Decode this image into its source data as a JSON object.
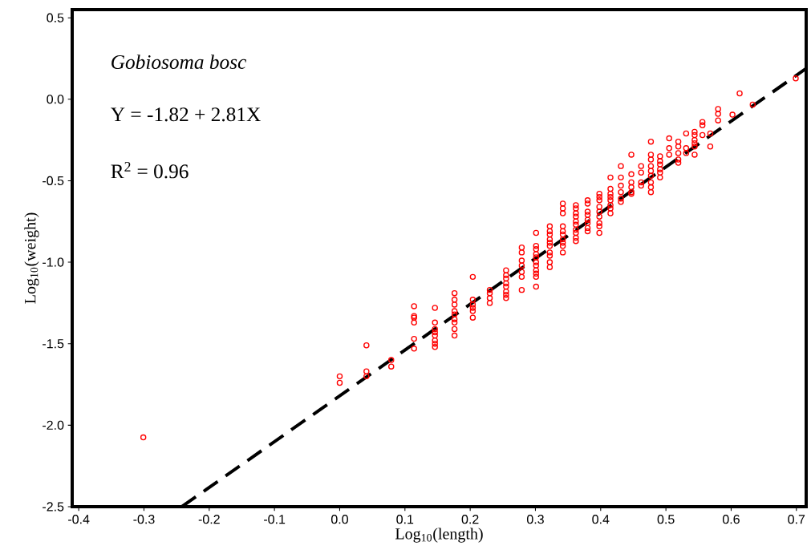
{
  "chart_data": {
    "type": "scatter",
    "xlabel": "Log$_{10}$(length)",
    "ylabel": "Log$_{10}$(weight)",
    "annotations": [
      "Gobiosoma bosc",
      "Y = -1.82 + 2.81X",
      "R$^{2}$ = 0.96"
    ],
    "xlim": [
      -0.41,
      0.715
    ],
    "ylim": [
      -2.5,
      0.55
    ],
    "xticks": [
      -0.4,
      -0.3,
      -0.2,
      -0.1,
      {
        "value": 0,
        "label": "0.0"
      },
      0.1,
      0.2,
      0.3,
      0.4,
      0.5,
      0.6,
      0.7
    ],
    "yticks": [
      {
        "value": -2.5,
        "label": "-2.5"
      },
      {
        "value": -2,
        "label": "-2.0"
      },
      -1.5,
      {
        "value": -1,
        "label": "-1.0"
      },
      -0.5,
      {
        "value": 0,
        "label": "0.0"
      },
      0.5
    ],
    "marker": "circle",
    "series": [
      {
        "color": "#ff0000",
        "x": [
          -0.301,
          0,
          0,
          0.041,
          0.041,
          0.041,
          0.079,
          0.079,
          0.114,
          0.114,
          0.114,
          0.114,
          0.114,
          0.114,
          0.146,
          0.146,
          0.146,
          0.146,
          0.146,
          0.146,
          0.146,
          0.146,
          0.176,
          0.176,
          0.176,
          0.176,
          0.176,
          0.176,
          0.176,
          0.176,
          0.176,
          0.204,
          0.204,
          0.204,
          0.204,
          0.204,
          0.204,
          0.23,
          0.23,
          0.23,
          0.23,
          0.255,
          0.255,
          0.255,
          0.255,
          0.255,
          0.255,
          0.255,
          0.255,
          0.279,
          0.279,
          0.279,
          0.279,
          0.279,
          0.279,
          0.279,
          0.301,
          0.301,
          0.301,
          0.301,
          0.301,
          0.301,
          0.301,
          0.301,
          0.301,
          0.301,
          0.301,
          0.322,
          0.322,
          0.322,
          0.322,
          0.322,
          0.322,
          0.322,
          0.322,
          0.322,
          0.322,
          0.342,
          0.342,
          0.342,
          0.342,
          0.342,
          0.342,
          0.342,
          0.342,
          0.342,
          0.342,
          0.362,
          0.362,
          0.362,
          0.362,
          0.362,
          0.362,
          0.362,
          0.362,
          0.362,
          0.362,
          0.38,
          0.38,
          0.38,
          0.38,
          0.38,
          0.38,
          0.38,
          0.38,
          0.398,
          0.398,
          0.398,
          0.398,
          0.398,
          0.398,
          0.398,
          0.398,
          0.398,
          0.415,
          0.415,
          0.415,
          0.415,
          0.415,
          0.415,
          0.415,
          0.415,
          0.431,
          0.431,
          0.431,
          0.431,
          0.431,
          0.431,
          0.447,
          0.447,
          0.447,
          0.447,
          0.447,
          0.447,
          0.462,
          0.462,
          0.462,
          0.462,
          0.477,
          0.477,
          0.477,
          0.477,
          0.477,
          0.477,
          0.477,
          0.477,
          0.477,
          0.491,
          0.491,
          0.491,
          0.491,
          0.491,
          0.491,
          0.505,
          0.505,
          0.505,
          0.519,
          0.519,
          0.519,
          0.519,
          0.519,
          0.531,
          0.531,
          0.531,
          0.544,
          0.544,
          0.544,
          0.544,
          0.544,
          0.544,
          0.556,
          0.556,
          0.556,
          0.568,
          0.568,
          0.58,
          0.58,
          0.58,
          0.602,
          0.613,
          0.633,
          0.699
        ],
        "values": [
          -2.075,
          -1.7,
          -1.74,
          -1.51,
          -1.67,
          -1.7,
          -1.6,
          -1.64,
          -1.27,
          -1.33,
          -1.34,
          -1.37,
          -1.47,
          -1.53,
          -1.28,
          -1.37,
          -1.41,
          -1.43,
          -1.45,
          -1.48,
          -1.5,
          -1.52,
          -1.19,
          -1.23,
          -1.26,
          -1.3,
          -1.32,
          -1.35,
          -1.37,
          -1.41,
          -1.45,
          -1.09,
          -1.23,
          -1.26,
          -1.28,
          -1.3,
          -1.34,
          -1.17,
          -1.19,
          -1.22,
          -1.25,
          -1.05,
          -1.08,
          -1.1,
          -1.13,
          -1.15,
          -1.18,
          -1.2,
          -1.22,
          -0.91,
          -0.94,
          -0.99,
          -1.02,
          -1.06,
          -1.09,
          -1.17,
          -0.82,
          -0.9,
          -0.92,
          -0.95,
          -0.97,
          -1.0,
          -1.02,
          -1.05,
          -1.07,
          -1.09,
          -1.15,
          -0.78,
          -0.81,
          -0.83,
          -0.86,
          -0.88,
          -0.9,
          -0.94,
          -0.96,
          -1.0,
          -1.03,
          -0.64,
          -0.67,
          -0.7,
          -0.78,
          -0.81,
          -0.83,
          -0.86,
          -0.88,
          -0.9,
          -0.94,
          -0.65,
          -0.67,
          -0.7,
          -0.72,
          -0.75,
          -0.77,
          -0.8,
          -0.82,
          -0.85,
          -0.87,
          -0.62,
          -0.64,
          -0.69,
          -0.71,
          -0.74,
          -0.76,
          -0.79,
          -0.81,
          -0.58,
          -0.6,
          -0.62,
          -0.66,
          -0.69,
          -0.72,
          -0.76,
          -0.78,
          -0.82,
          -0.48,
          -0.55,
          -0.58,
          -0.6,
          -0.62,
          -0.65,
          -0.67,
          -0.7,
          -0.41,
          -0.48,
          -0.53,
          -0.57,
          -0.61,
          -0.63,
          -0.34,
          -0.46,
          -0.51,
          -0.54,
          -0.57,
          -0.58,
          -0.41,
          -0.45,
          -0.51,
          -0.53,
          -0.26,
          -0.34,
          -0.37,
          -0.41,
          -0.44,
          -0.47,
          -0.51,
          -0.54,
          -0.57,
          -0.35,
          -0.38,
          -0.4,
          -0.43,
          -0.45,
          -0.48,
          -0.24,
          -0.3,
          -0.34,
          -0.26,
          -0.29,
          -0.33,
          -0.37,
          -0.39,
          -0.21,
          -0.3,
          -0.33,
          -0.2,
          -0.22,
          -0.25,
          -0.27,
          -0.29,
          -0.34,
          -0.14,
          -0.16,
          -0.22,
          -0.21,
          -0.29,
          -0.06,
          -0.09,
          -0.13,
          -0.095,
          0.036,
          -0.033,
          0.128
        ]
      },
      {
        "type": "line",
        "color": "#000000",
        "line_style": "dashed",
        "marker": "none",
        "x": [
          -0.242,
          0.715
        ],
        "values": [
          -2.5,
          0.189
        ]
      }
    ]
  }
}
